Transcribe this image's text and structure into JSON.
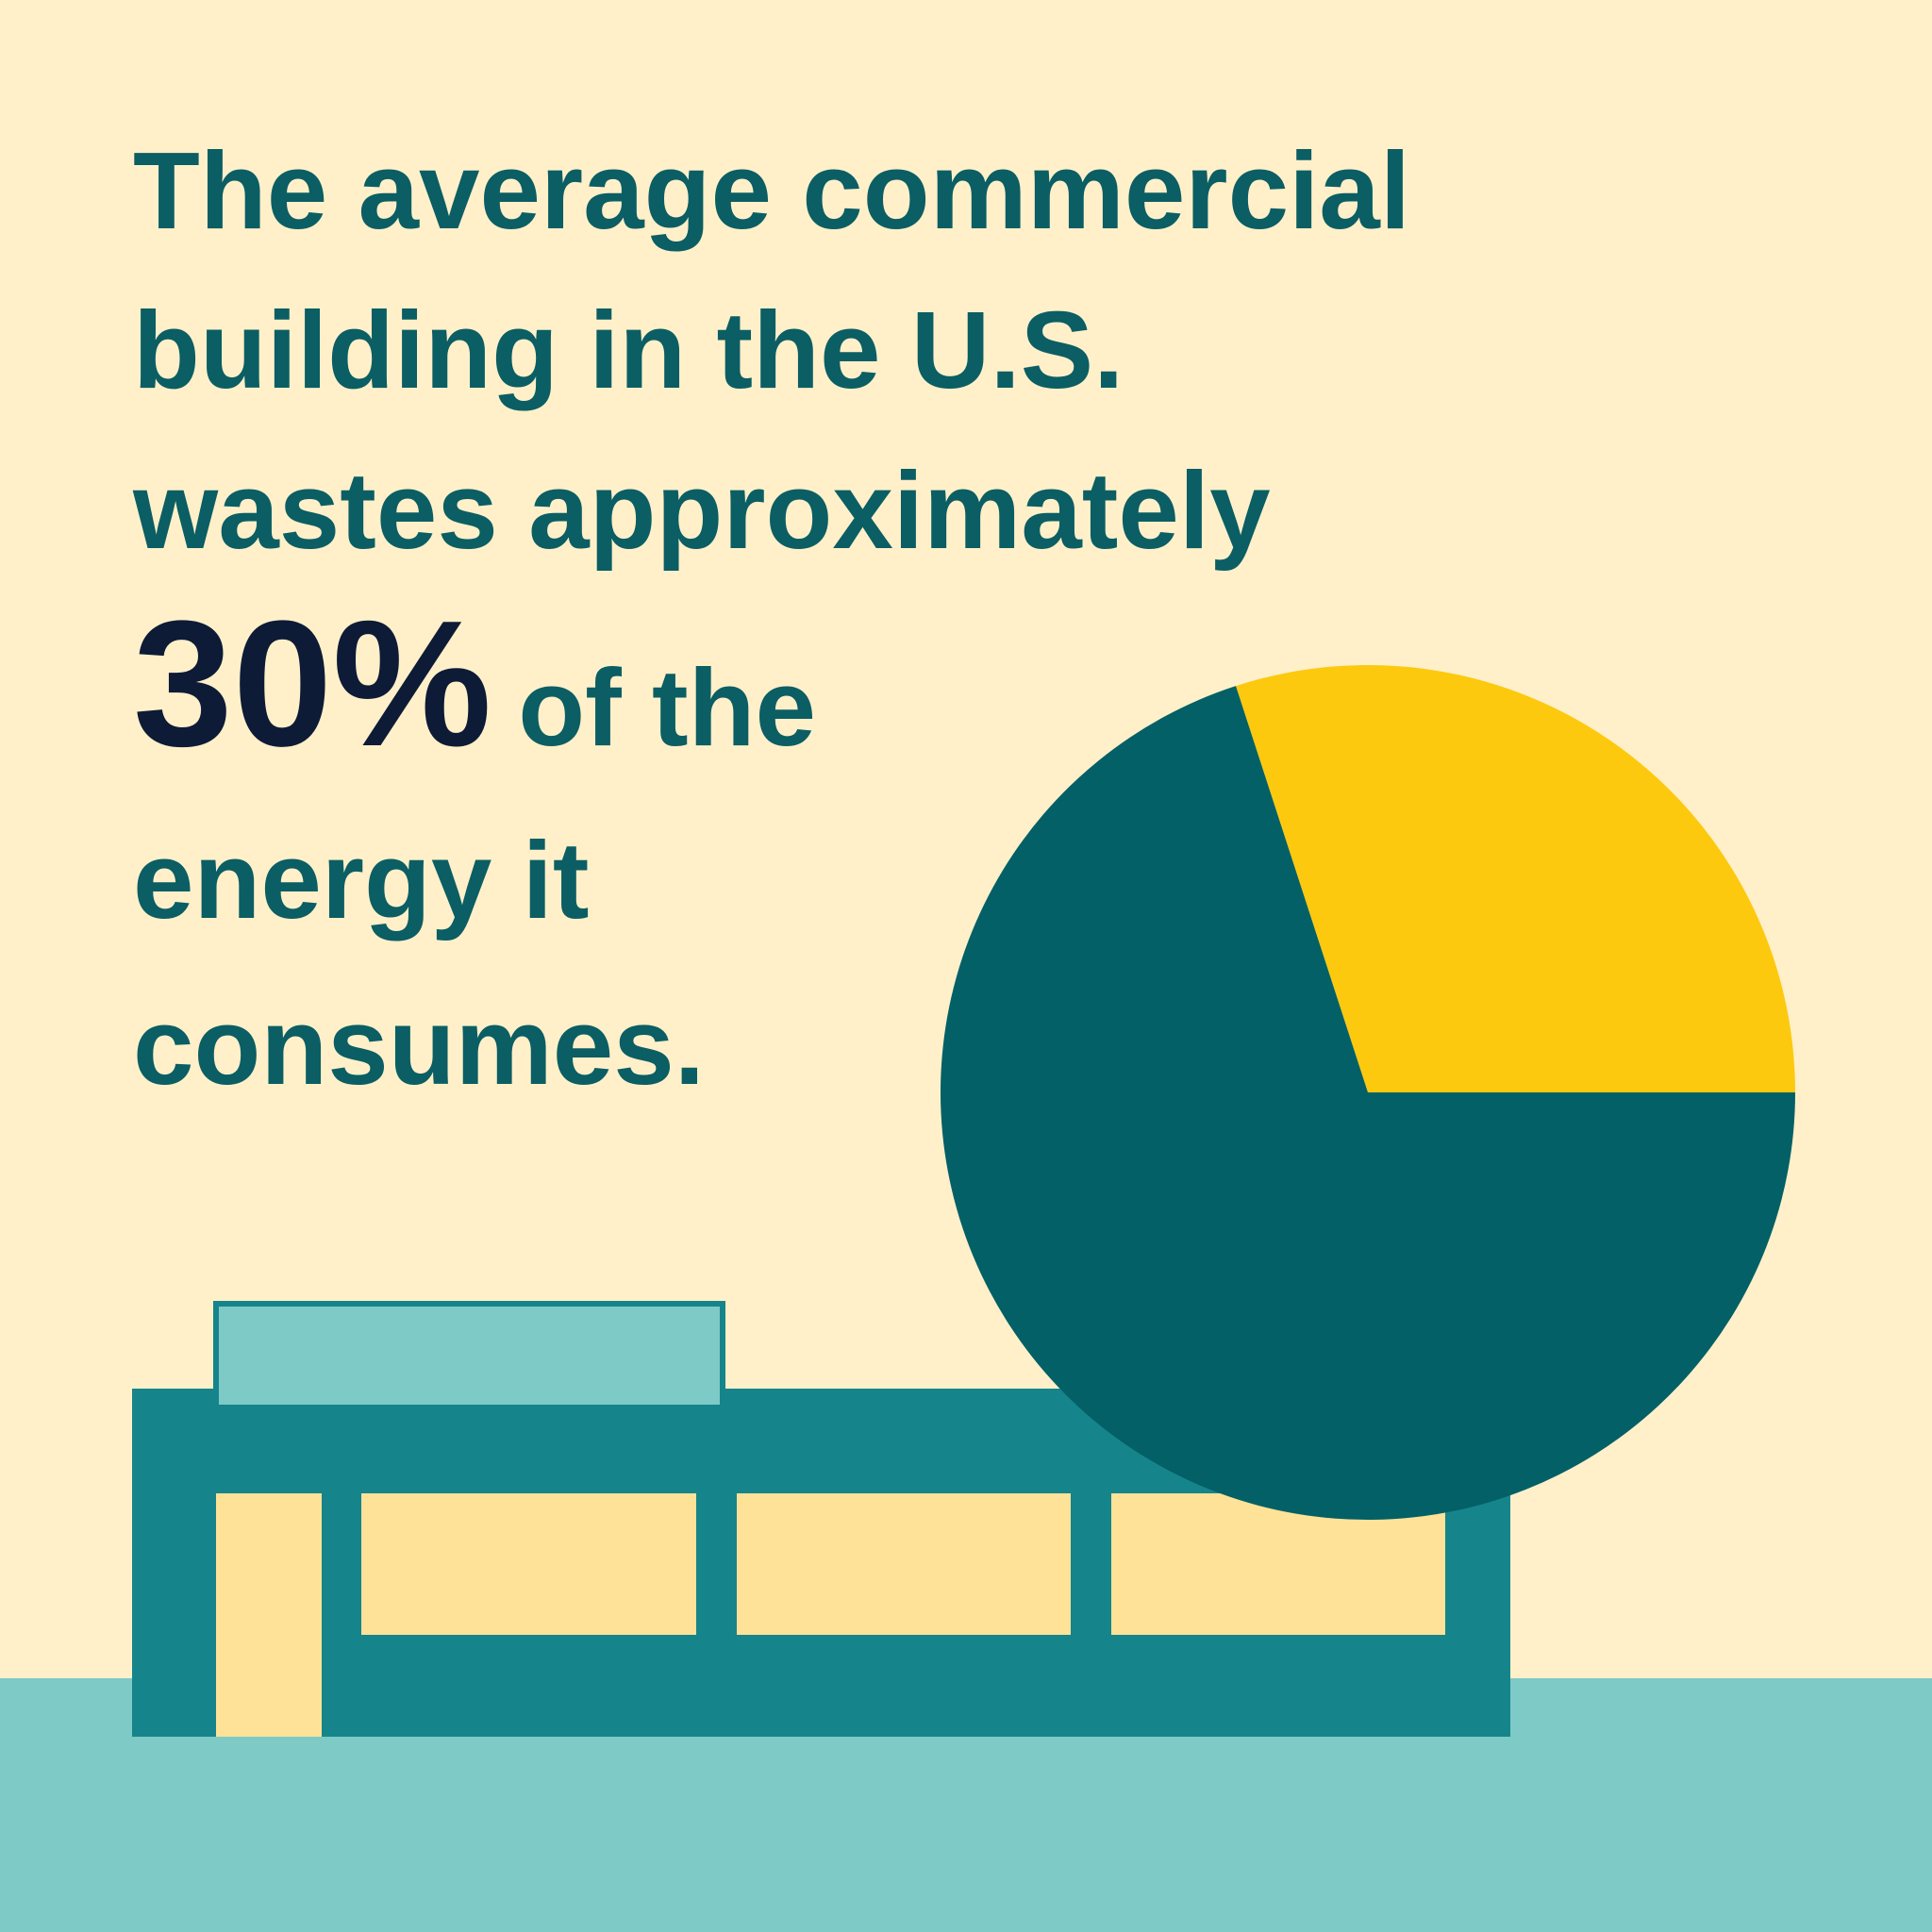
{
  "chart_data": {
    "type": "pie",
    "title_lines": [
      "The average commercial",
      "building in the U.S.",
      "wastes approximately",
      "of the",
      "energy it",
      "consumes."
    ],
    "values": [
      30,
      70
    ],
    "value_labels": [
      "30%",
      null
    ],
    "colors": [
      "#fdc90e",
      "#026066"
    ]
  }
}
